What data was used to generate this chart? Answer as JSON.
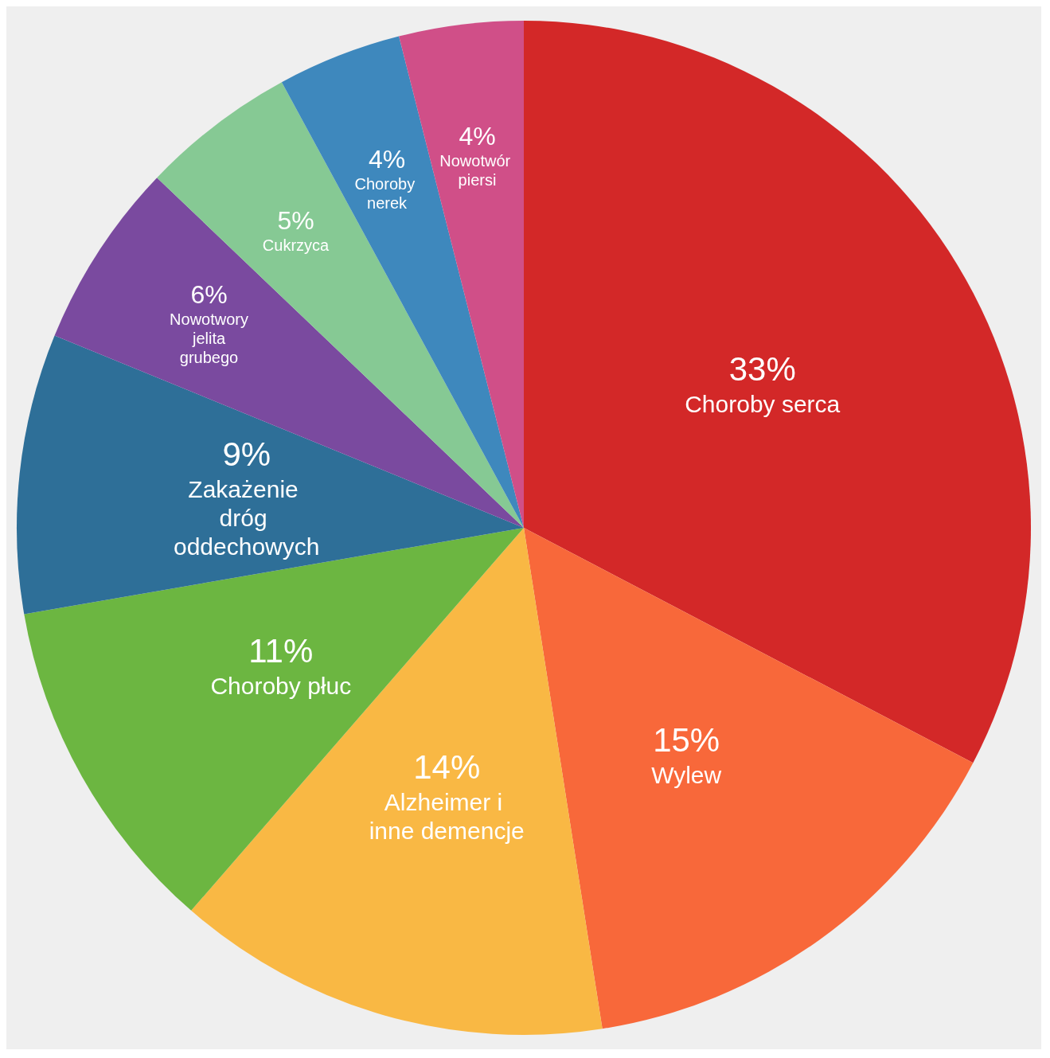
{
  "chart_data": {
    "type": "pie",
    "categories": [
      "Choroby serca",
      "Wylew",
      "Alzheimer i inne demencje",
      "Choroby płuc",
      "Zakażenie dróg oddechowych",
      "Nowotwory jelita grubego",
      "Cukrzyca",
      "Choroby nerek",
      "Nowotwór piersi"
    ],
    "values": [
      33,
      15,
      14,
      11,
      9,
      6,
      5,
      4,
      4
    ],
    "value_labels": [
      "33%",
      "15%",
      "14%",
      "11%",
      "9%",
      "6%",
      "5%",
      "4%",
      "4%"
    ],
    "colors": [
      "#d32828",
      "#f8683a",
      "#f9b844",
      "#6cb641",
      "#2e6f98",
      "#7a4a9f",
      "#86c994",
      "#3e88bd",
      "#d04f88"
    ],
    "legend": false
  }
}
